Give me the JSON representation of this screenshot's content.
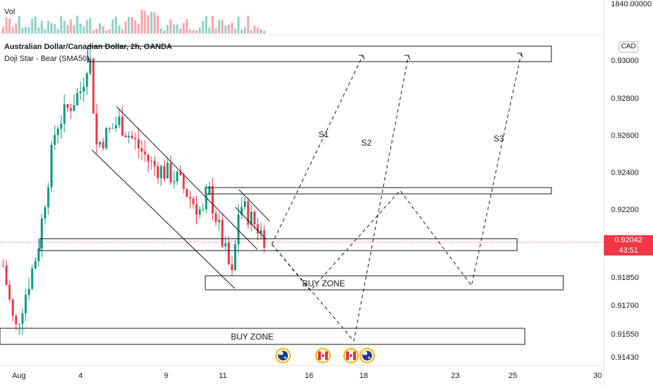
{
  "header": {
    "vol_label": "Vol",
    "symbol_line": "Australian Dollar/Canadian Dollar, 2h, OANDA",
    "indicator_line": "Doji Star - Bear (SMA50)"
  },
  "price_scale": {
    "currency": "CAD",
    "volume_tick": "1840.00000",
    "current_price": "0.92042",
    "countdown": "43:51",
    "current_price_color": "#f23645"
  },
  "chart_data": {
    "type": "candlestick",
    "symbol": "AUDCAD",
    "interval": "2h",
    "y_ticks": [
      "0.93000",
      "0.92800",
      "0.92600",
      "0.92400",
      "0.92200",
      "0.92042",
      "0.91850",
      "0.91700",
      "0.91550",
      "0.91430"
    ],
    "x_ticks": [
      "Aug",
      "4",
      "9",
      "11",
      "16",
      "18",
      "23",
      "25",
      "30"
    ],
    "ylim": [
      0.914,
      0.932
    ],
    "up_color": "#089981",
    "down_color": "#f23645",
    "current_price": 0.92042,
    "candle_path": [
      {
        "date": "Jul 31",
        "close": 0.9198
      },
      {
        "date": "Aug 1",
        "close": 0.9157
      },
      {
        "date": "Aug 2",
        "close": 0.92
      },
      {
        "date": "Aug 3",
        "close": 0.9265
      },
      {
        "date": "Aug 4",
        "close": 0.9285
      },
      {
        "date": "Aug 4.5",
        "close": 0.9305
      },
      {
        "date": "Aug 5",
        "close": 0.9255
      },
      {
        "date": "Aug 6",
        "close": 0.9268
      },
      {
        "date": "Aug 7",
        "close": 0.9245
      },
      {
        "date": "Aug 8",
        "close": 0.9238
      },
      {
        "date": "Aug 9",
        "close": 0.9225
      },
      {
        "date": "Aug 10",
        "close": 0.9218
      },
      {
        "date": "Aug 10.5",
        "close": 0.9232
      },
      {
        "date": "Aug 11",
        "close": 0.9185
      },
      {
        "date": "Aug 11.5",
        "close": 0.9225
      },
      {
        "date": "Aug 12",
        "close": 0.9206
      }
    ],
    "annotations": {
      "zones": [
        {
          "label": "",
          "from": 0.93,
          "to": 0.9304
        },
        {
          "label": "",
          "from": 0.9229,
          "to": 0.9231
        },
        {
          "label": "",
          "from": 0.9201,
          "to": 0.9205
        },
        {
          "label": "BUY ZONE",
          "from": 0.9181,
          "to": 0.9185
        },
        {
          "label": "BUY ZONE",
          "from": 0.9149,
          "to": 0.9154
        }
      ],
      "scenarios": [
        "S1",
        "S2",
        "S3"
      ],
      "channel": "descending"
    },
    "events": [
      "AU",
      "CA",
      "CA",
      "AU"
    ]
  }
}
